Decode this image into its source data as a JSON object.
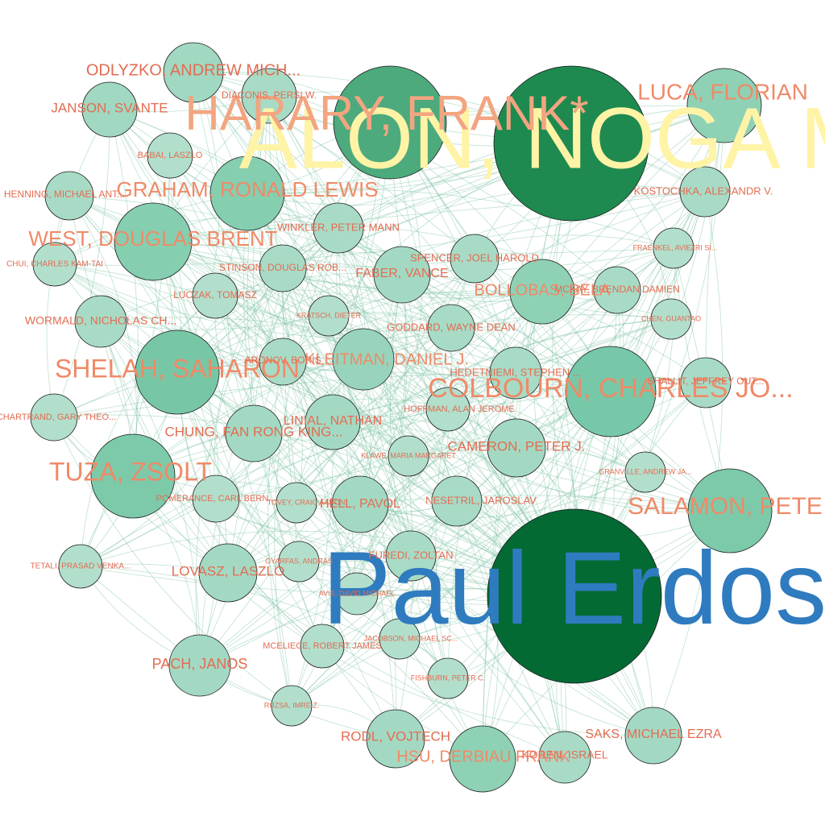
{
  "nodes": [
    {
      "id": "erdos",
      "label": "Paul Erdos",
      "size": "xxl",
      "color": "#046a33",
      "label_color": "#2f7bbf"
    },
    {
      "id": "alon",
      "label": "ALON, NOGA M",
      "size": "xl",
      "color": "#1f8a4f",
      "label_color": "#fff3a6"
    },
    {
      "id": "harary",
      "label": "HARARY, FRANK*",
      "size": "l",
      "color": "#4caa7c",
      "label_color": "#f2a580"
    },
    {
      "id": "colbourn",
      "label": "COLBOURN, CHARLES JO...",
      "size": "l",
      "color": "#77c8a8",
      "label_color": "#ef8a68"
    },
    {
      "id": "salamon",
      "label": "SALAMON, PETE",
      "size": "l",
      "color": "#7dcaaa",
      "label_color": "#ef8a68"
    },
    {
      "id": "shelah",
      "label": "SHELAH, SAHARON",
      "size": "l",
      "color": "#77c7a6",
      "label_color": "#ef8a68"
    },
    {
      "id": "tuza",
      "label": "TUZA, ZSOLT",
      "size": "l",
      "color": "#7dcaaa",
      "label_color": "#ef8a68"
    },
    {
      "id": "west",
      "label": "WEST, DOUGLAS BRENT",
      "size": "l",
      "color": "#86ceb0",
      "label_color": "#ef8a68"
    },
    {
      "id": "graham",
      "label": "GRAHAM, RONALD LEWIS",
      "size": "l",
      "color": "#86ceb0",
      "label_color": "#ef8a68"
    },
    {
      "id": "luca",
      "label": "LUCA, FLORIAN",
      "size": "m",
      "color": "#8fd1b5",
      "label_color": "#ef8a68"
    },
    {
      "id": "bollobas",
      "label": "BOLLOBAS, BELA",
      "size": "m",
      "color": "#8fd1b5",
      "label_color": "#ef8a68"
    },
    {
      "id": "kleitman",
      "label": "KLEITMAN, DANIEL J.",
      "size": "m",
      "color": "#97d4bb",
      "label_color": "#ef8a68"
    },
    {
      "id": "hsu",
      "label": "HSU, DERBIAU FRANK",
      "size": "m",
      "color": "#8fd1b5",
      "label_color": "#ef8a68"
    },
    {
      "id": "odlyzko",
      "label": "ODLYZKO, ANDREW MICH...",
      "size": "ms",
      "color": "#a0d8c1",
      "label_color": "#e36c52"
    },
    {
      "id": "janson",
      "label": "JANSON, SVANTE",
      "size": "ms",
      "color": "#a0d8c1",
      "label_color": "#e36c52"
    },
    {
      "id": "chung",
      "label": "CHUNG, FAN RONG KING...",
      "size": "ms",
      "color": "#a3d9c3",
      "label_color": "#e36c52"
    },
    {
      "id": "linial",
      "label": "LINIAL, NATHAN",
      "size": "ms",
      "color": "#a3d9c3",
      "label_color": "#e36c52"
    },
    {
      "id": "faber",
      "label": "FABER, VANCE",
      "size": "ms",
      "color": "#a3d9c3",
      "label_color": "#e36c52"
    },
    {
      "id": "cameron",
      "label": "CAMERON, PETER J.",
      "size": "ms",
      "color": "#a3d9c3",
      "label_color": "#e36c52"
    },
    {
      "id": "lovasz",
      "label": "LOVASZ, LASZLO",
      "size": "ms",
      "color": "#a3d9c3",
      "label_color": "#e36c52"
    },
    {
      "id": "pach",
      "label": "PACH, JANOS",
      "size": "ms",
      "color": "#a3d9c3",
      "label_color": "#e36c52"
    },
    {
      "id": "rodl",
      "label": "RODL, VOJTECH",
      "size": "ms",
      "color": "#a3d9c3",
      "label_color": "#e36c52"
    },
    {
      "id": "saks",
      "label": "SAKS, MICHAEL EZRA",
      "size": "ms",
      "color": "#a3d9c3",
      "label_color": "#e36c52"
    },
    {
      "id": "hell",
      "label": "HELL, PAVOL",
      "size": "ms",
      "color": "#a3d9c3",
      "label_color": "#e36c52"
    },
    {
      "id": "korner",
      "label": "KOREN, ISRAEL",
      "size": "s",
      "color": "#a8dbc6",
      "label_color": "#e36c52"
    },
    {
      "id": "kostochka",
      "label": "KOSTOCHKA, ALEXANDR V.",
      "size": "s",
      "color": "#a8dbc6",
      "label_color": "#e36c52"
    },
    {
      "id": "winkler",
      "label": "WINKLER, PETER MANN",
      "size": "s",
      "color": "#a8dbc6",
      "label_color": "#e36c52"
    },
    {
      "id": "spencer",
      "label": "SPENCER, JOEL HAROLD",
      "size": "s",
      "color": "#a8dbc6",
      "label_color": "#e36c52"
    },
    {
      "id": "stinson",
      "label": "STINSON, DOUGLAS ROB...",
      "size": "s",
      "color": "#a8dbc6",
      "label_color": "#e36c52"
    },
    {
      "id": "wormald",
      "label": "WORMALD, NICHOLAS CH...",
      "size": "s",
      "color": "#a8dbc6",
      "label_color": "#e36c52"
    },
    {
      "id": "goddard",
      "label": "GODDARD, WAYNE DEAN",
      "size": "s",
      "color": "#a8dbc6",
      "label_color": "#e36c52"
    },
    {
      "id": "hedetniemi",
      "label": "HEDETNIEMI, STEPHEN ...",
      "size": "s",
      "color": "#a8dbc6",
      "label_color": "#e36c52"
    },
    {
      "id": "furedi",
      "label": "FUREDI, ZOLTAN",
      "size": "s",
      "color": "#a8dbc6",
      "label_color": "#e36c52"
    },
    {
      "id": "nesetril",
      "label": "NESETRIL, JAROSLAV",
      "size": "s",
      "color": "#a8dbc6",
      "label_color": "#e36c52"
    },
    {
      "id": "mckay",
      "label": "MCKAY, BRENDAN DAMIEN",
      "size": "s",
      "color": "#a8dbc6",
      "label_color": "#e36c52"
    },
    {
      "id": "shallit",
      "label": "SHALLIT, JEFFREY OUT...",
      "size": "s",
      "color": "#a8dbc6",
      "label_color": "#e36c52"
    },
    {
      "id": "aronov",
      "label": "ARONOV, BORIS",
      "size": "s",
      "color": "#a8dbc6",
      "label_color": "#e36c52"
    },
    {
      "id": "henning",
      "label": "HENNING, MICHAEL ANT...",
      "size": "s",
      "color": "#a8dbc6",
      "label_color": "#e36c52"
    },
    {
      "id": "diaconis",
      "label": "DIACONIS, PERSI W.",
      "size": "s",
      "color": "#a8dbc6",
      "label_color": "#e36c52"
    },
    {
      "id": "luczak",
      "label": "LUCZAK, TOMASZ",
      "size": "s",
      "color": "#b1dfcc",
      "label_color": "#e36c52"
    },
    {
      "id": "babai",
      "label": "BABAI, LASZLO",
      "size": "s",
      "color": "#b1dfcc",
      "label_color": "#e36c52"
    },
    {
      "id": "chui",
      "label": "CHUI, CHARLES KAM-TAI",
      "size": "xs",
      "color": "#b1dfcc",
      "label_color": "#e36c52"
    },
    {
      "id": "chartrand",
      "label": "CHARTRAND, GARY THEO...",
      "size": "s",
      "color": "#b1dfcc",
      "label_color": "#e36c52"
    },
    {
      "id": "tetali",
      "label": "TETALI, PRASAD VENKA...",
      "size": "s",
      "color": "#b1dfcc",
      "label_color": "#e36c52"
    },
    {
      "id": "pomerance",
      "label": "POMERANCE, CARL BERN...",
      "size": "s",
      "color": "#b1dfcc",
      "label_color": "#e36c52"
    },
    {
      "id": "tovey",
      "label": "TOVEY, CRAIG AARON",
      "size": "xs",
      "color": "#b1dfcc",
      "label_color": "#e36c52"
    },
    {
      "id": "gyarfas",
      "label": "GYARFAS, ANDRAS",
      "size": "xs",
      "color": "#b1dfcc",
      "label_color": "#e36c52"
    },
    {
      "id": "avis",
      "label": "AVIS, DAVID MICHAEL",
      "size": "xs",
      "color": "#b1dfcc",
      "label_color": "#e36c52"
    },
    {
      "id": "mceliece",
      "label": "MCELIECE, ROBERT JAMES",
      "size": "xs",
      "color": "#b1dfcc",
      "label_color": "#e36c52"
    },
    {
      "id": "jacobson",
      "label": "JACOBSON, MICHAEL SC...",
      "size": "xs",
      "color": "#b1dfcc",
      "label_color": "#e36c52"
    },
    {
      "id": "fishburn",
      "label": "FISHBURN, PETER C.",
      "size": "xs",
      "color": "#b1dfcc",
      "label_color": "#e36c52"
    },
    {
      "id": "ruzsa",
      "label": "RUZSA, IMRE Z.",
      "size": "xs",
      "color": "#b1dfcc",
      "label_color": "#e36c52"
    },
    {
      "id": "hoffman",
      "label": "HOFFMAN, ALAN JEROME",
      "size": "xs",
      "color": "#b1dfcc",
      "label_color": "#e36c52"
    },
    {
      "id": "klawe",
      "label": "KLAWE, MARIA MARGARET",
      "size": "xs",
      "color": "#b1dfcc",
      "label_color": "#e36c52"
    },
    {
      "id": "kratsch",
      "label": "KRATSCH, DIETER",
      "size": "xs",
      "color": "#b1dfcc",
      "label_color": "#e36c52"
    },
    {
      "id": "fraenkel",
      "label": "FRAENKEL, AVIEZRI SI...",
      "size": "xs",
      "color": "#b1dfcc",
      "label_color": "#e36c52"
    },
    {
      "id": "chen",
      "label": "CHEN, GUANTAO",
      "size": "xs",
      "color": "#b1dfcc",
      "label_color": "#e36c52"
    },
    {
      "id": "granville",
      "label": "GRANVILLE, ANDREW JA...",
      "size": "xs",
      "color": "#b1dfcc",
      "label_color": "#e36c52"
    }
  ],
  "edge_color": "#7fc4a4"
}
